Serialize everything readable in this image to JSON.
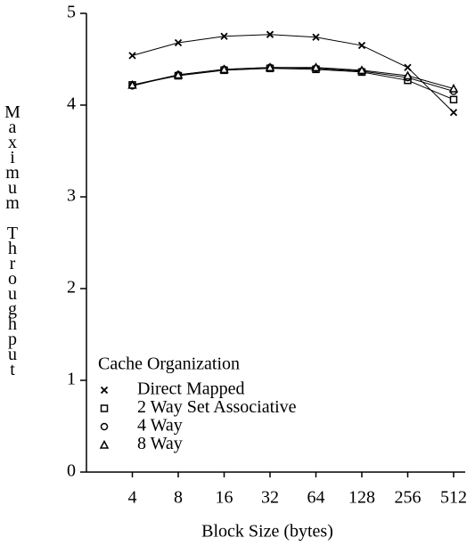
{
  "chart_data": {
    "type": "line",
    "x_label": "Block Size (bytes)",
    "y_label": "Maximum Throughput",
    "categories": [
      "4",
      "8",
      "16",
      "32",
      "64",
      "128",
      "256",
      "512"
    ],
    "series": [
      {
        "name": "Direct Mapped",
        "color": "#000000",
        "marker": "x",
        "values": [
          4.54,
          4.68,
          4.75,
          4.77,
          4.74,
          4.65,
          4.41,
          3.92
        ]
      },
      {
        "name": "2 Way Set Associative",
        "color": "#000000",
        "marker": "square",
        "values": [
          4.22,
          4.32,
          4.38,
          4.4,
          4.39,
          4.36,
          4.27,
          4.06
        ]
      },
      {
        "name": "4 Way",
        "color": "#000000",
        "marker": "circle",
        "values": [
          4.21,
          4.33,
          4.39,
          4.41,
          4.4,
          4.37,
          4.3,
          4.15
        ]
      },
      {
        "name": "8 Way",
        "color": "#000000",
        "marker": "triangle",
        "values": [
          4.22,
          4.33,
          4.39,
          4.41,
          4.41,
          4.38,
          4.32,
          4.18
        ]
      }
    ],
    "legend_title": "Cache Organization",
    "legend": "lower left",
    "ylim": [
      0,
      5
    ],
    "yticks": [
      0,
      1,
      2,
      3,
      4,
      5
    ],
    "grid": false
  }
}
